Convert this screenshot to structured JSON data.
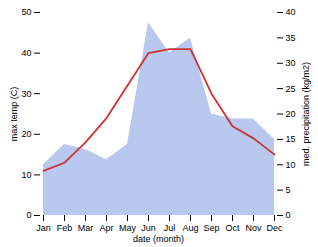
{
  "chart_data": {
    "type": "line",
    "xlabel": "date (month)",
    "ylabel": "max temp (C)",
    "y2label": "med. precipitation (kg/m2)",
    "categories": [
      "Jan",
      "Feb",
      "Mar",
      "Apr",
      "May",
      "Jun",
      "Jul",
      "Aug",
      "Sep",
      "Oct",
      "Nov",
      "Dec"
    ],
    "series": [
      {
        "type": "area",
        "axis": "y2",
        "color": "#b8c8ee",
        "values": [
          10,
          14,
          13,
          11,
          14,
          38,
          32,
          35,
          20,
          19,
          19,
          15
        ]
      },
      {
        "type": "line",
        "color": "#cc3333",
        "values": [
          11,
          13,
          18,
          24,
          32,
          40,
          41,
          41,
          30,
          22,
          19,
          15
        ]
      }
    ],
    "ylim": [
      0,
      50
    ],
    "yticks": [
      0,
      10,
      20,
      30,
      40,
      50
    ],
    "y2lim": [
      0,
      40
    ],
    "y2ticks": [
      0,
      5,
      10,
      15,
      20,
      25,
      30,
      35,
      40
    ],
    "grid": false
  }
}
